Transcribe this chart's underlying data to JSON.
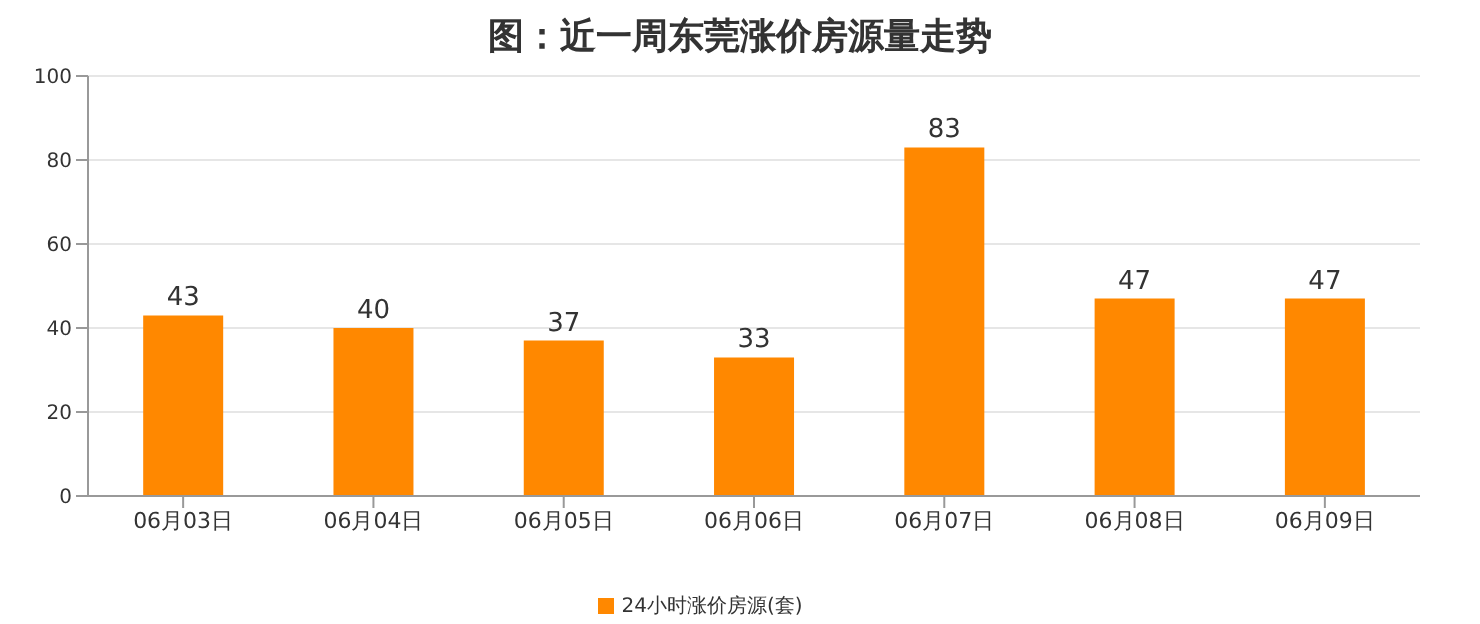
{
  "chart_data": {
    "type": "bar",
    "title": "图：近一周东莞涨价房源量走势",
    "categories": [
      "06月03日",
      "06月04日",
      "06月05日",
      "06月06日",
      "06月07日",
      "06月08日",
      "06月09日"
    ],
    "series": [
      {
        "name": "24小时涨价房源(套)",
        "color": "#ff8800",
        "values": [
          43,
          40,
          37,
          33,
          83,
          47,
          47
        ]
      }
    ],
    "ylim": [
      0,
      100
    ],
    "yticks": [
      0,
      20,
      40,
      60,
      80,
      100
    ],
    "grid": "y",
    "legend": "bottom",
    "data_labels": true
  }
}
